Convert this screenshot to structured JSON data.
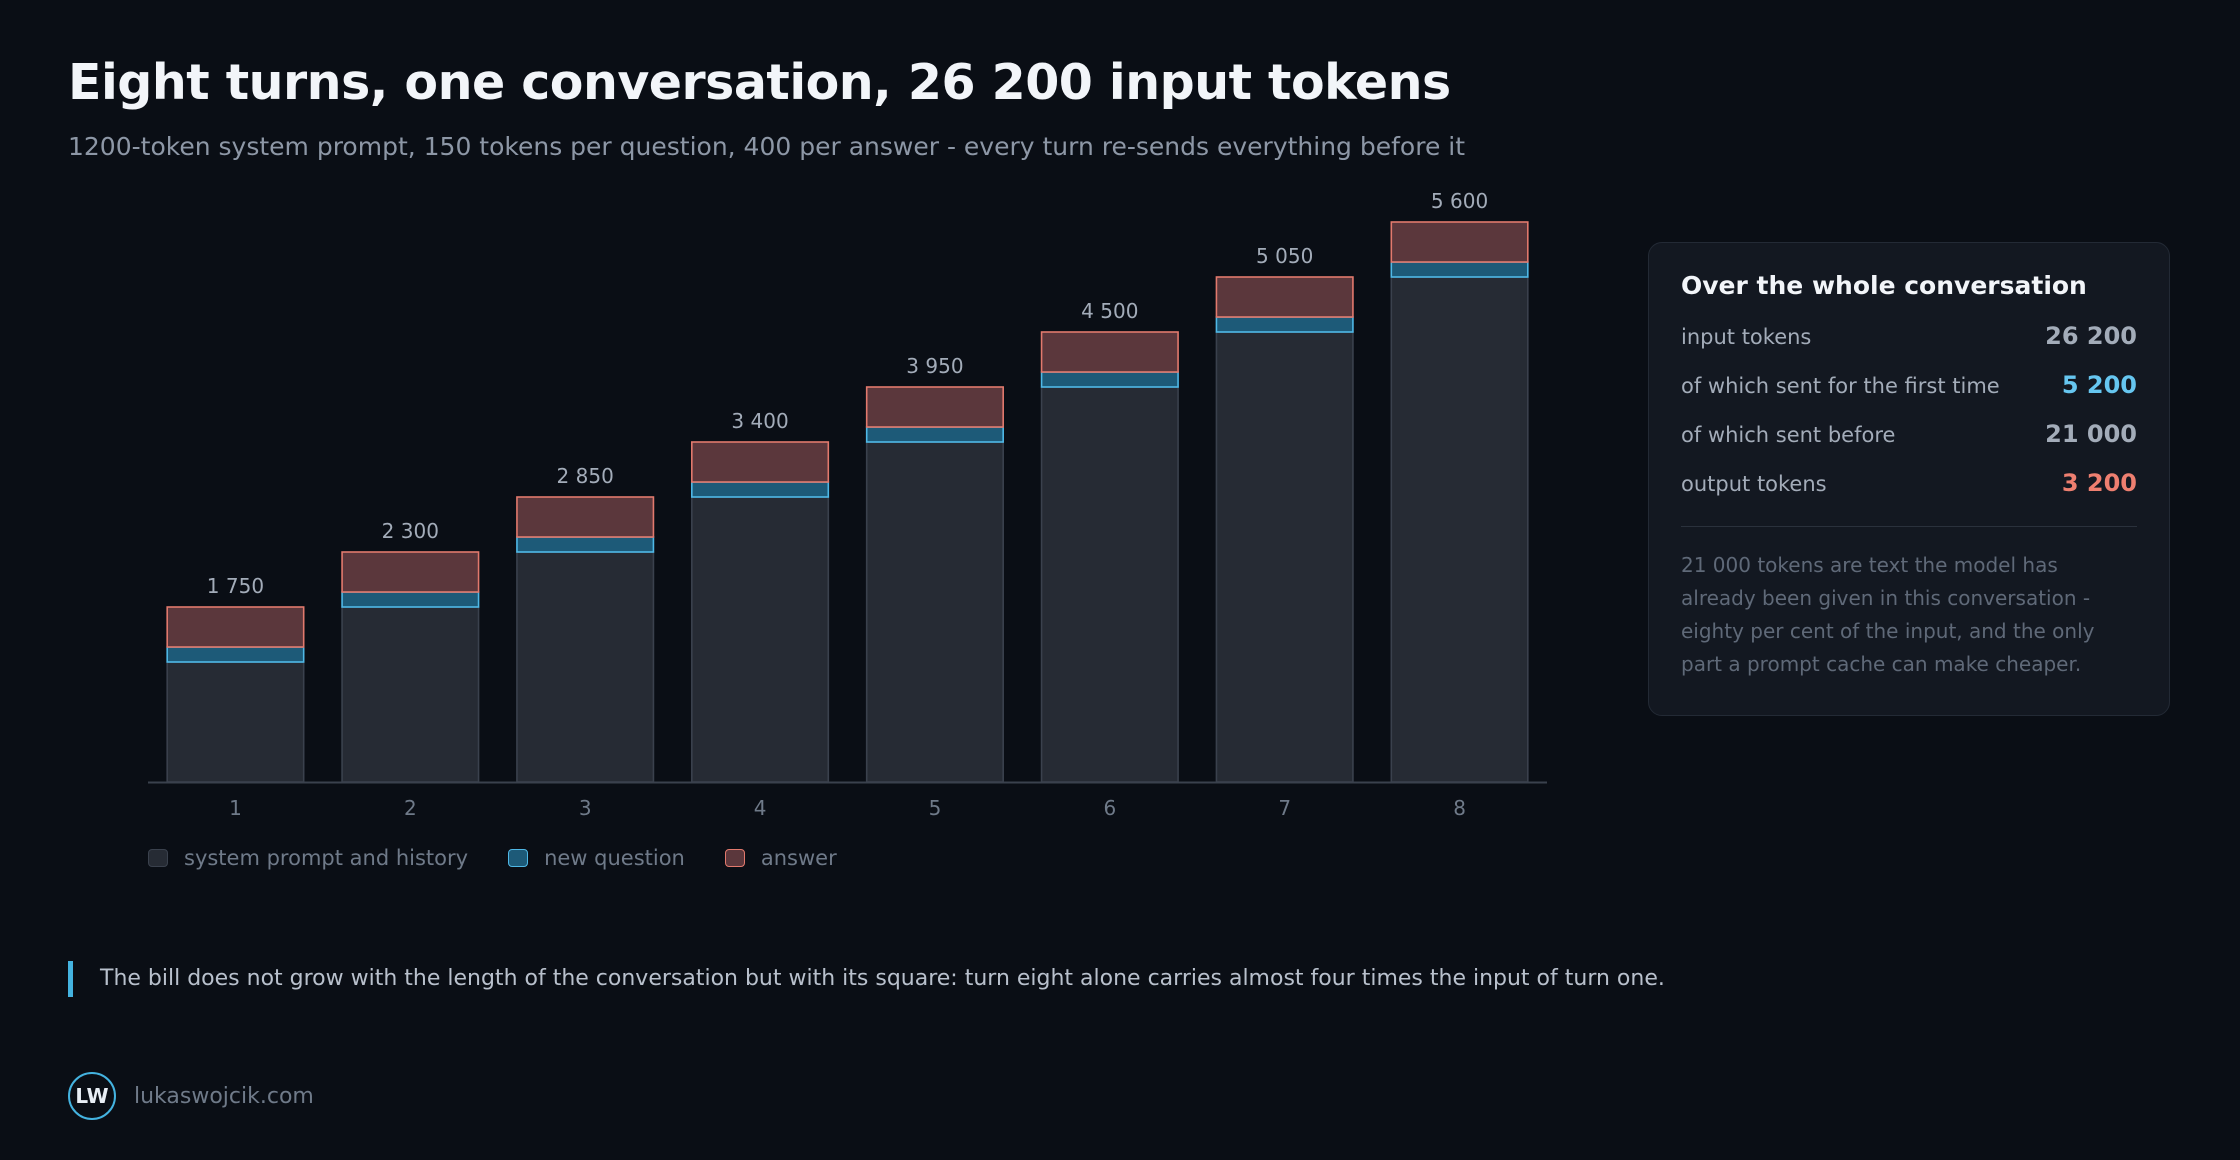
{
  "header": {
    "title": "Eight turns, one conversation, 26 200 input tokens",
    "subtitle": "1200-token system prompt, 150 tokens per question, 400 per answer - every turn re-sends everything before it"
  },
  "chart_data": {
    "type": "bar",
    "stacked": true,
    "categories": [
      "1",
      "2",
      "3",
      "4",
      "5",
      "6",
      "7",
      "8"
    ],
    "series": [
      {
        "name": "system prompt and history",
        "values": [
          1200,
          1750,
          2300,
          2850,
          3400,
          3950,
          4500,
          5050
        ],
        "color": "#262b34",
        "stroke": "#3a414d"
      },
      {
        "name": "new question",
        "values": [
          150,
          150,
          150,
          150,
          150,
          150,
          150,
          150
        ],
        "color": "#1d5a78",
        "stroke": "#4fb8e6"
      },
      {
        "name": "answer",
        "values": [
          400,
          400,
          400,
          400,
          400,
          400,
          400,
          400
        ],
        "color": "#5b373c",
        "stroke": "#e2796d"
      }
    ],
    "totals": [
      "1 750",
      "2 300",
      "2 850",
      "3 400",
      "3 950",
      "4 500",
      "5 050",
      "5 600"
    ],
    "ylim": [
      0,
      5600
    ],
    "xlabel": "",
    "ylabel": "",
    "grid": false,
    "legend": "bottom-left"
  },
  "legend": {
    "history": "system prompt and history",
    "question": "new question",
    "answer": "answer"
  },
  "panel": {
    "title": "Over the whole conversation",
    "stats": [
      {
        "label": "input tokens",
        "value": "26 200"
      },
      {
        "label": "of which sent for the first time",
        "value": "5 200"
      },
      {
        "label": "of which sent before",
        "value": "21 000"
      },
      {
        "label": "output tokens",
        "value": "3 200"
      }
    ],
    "note": "21 000 tokens are text the model has already been given in this conversation - eighty per cent of the input, and the only part a prompt cache can make cheaper."
  },
  "callout": "The bill does not grow with the length of the conversation but with its square: turn eight alone carries almost four times the input of turn one.",
  "footer": {
    "logo": "LW",
    "site": "lukaswojcik.com"
  }
}
